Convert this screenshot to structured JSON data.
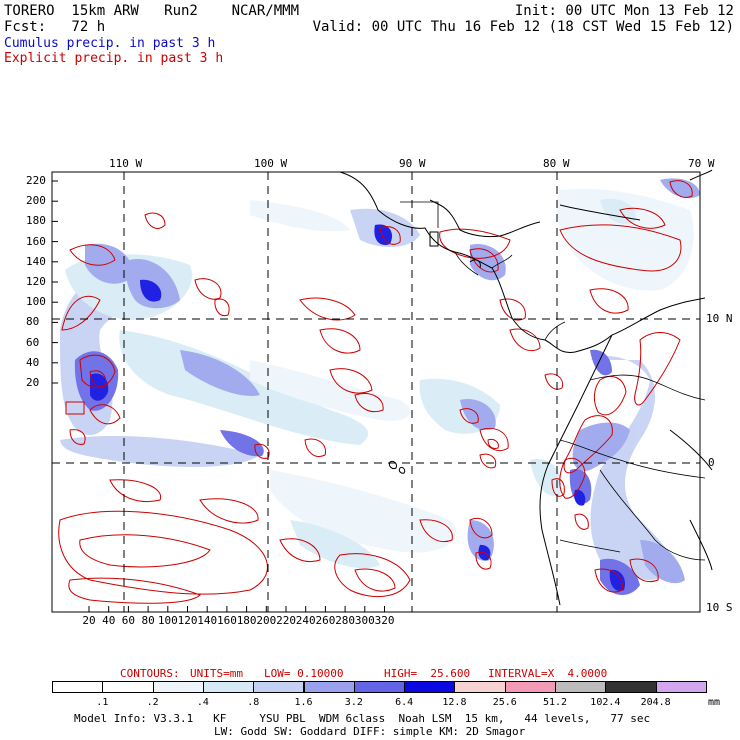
{
  "header": {
    "line1_left": "TORERO  15km ARW   Run2    NCAR/MMM",
    "line1_right": "Init: 00 UTC Mon 13 Feb 12",
    "line2_left": "Fcst:   72 h",
    "line2_right": "Valid: 00 UTC Thu 16 Feb 12 (18 CST Wed 15 Feb 12)",
    "legend_cumulus": "Cumulus precip. in past 3 h",
    "legend_explicit": "Explicit precip. in past 3 h"
  },
  "colors": {
    "cumulus": "#0a0ac8",
    "explicit": "#cc0000",
    "map_lines": "#000000"
  },
  "top_labels": [
    "110 W",
    "100 W",
    "90 W",
    "80 W",
    "70 W"
  ],
  "right_labels": [
    "10 N",
    "0",
    "10 S"
  ],
  "left_ticks": [
    "220",
    "200",
    "180",
    "160",
    "140",
    "120",
    "100",
    "80",
    "60",
    "40",
    "20"
  ],
  "bottom_ticks": [
    "20",
    "40",
    "60",
    "80",
    "100",
    "120",
    "140",
    "160",
    "180",
    "200",
    "220",
    "240",
    "260",
    "280",
    "300",
    "320"
  ],
  "contours": {
    "label": "CONTOURS:",
    "units": "UNITS=mm",
    "low": "LOW= 0.10000",
    "high": "HIGH=  25.600",
    "interval": "INTERVAL=X  4.0000"
  },
  "colorbar": {
    "colors": [
      "#ffffff",
      "#ffffff",
      "#eef6fb",
      "#d6eaf6",
      "#c4d0f4",
      "#9aa2ee",
      "#6464e6",
      "#0a0ae0",
      "#f6d2d2",
      "#f29ab6",
      "#bcbcbc",
      "#323232",
      "#d4a6ee"
    ],
    "labels": [
      ".1",
      ".2",
      ".4",
      ".8",
      "1.6",
      "3.2",
      "6.4",
      "12.8",
      "25.6",
      "51.2",
      "102.4",
      "204.8"
    ],
    "unit": "mm"
  },
  "footer": {
    "line1": "Model Info: V3.3.1   KF     YSU PBL  WDM 6class  Noah LSM  15 km,   44 levels,   77 sec",
    "line2": "LW: Godd SW: Goddard DIFF: simple KM: 2D Smagor"
  }
}
